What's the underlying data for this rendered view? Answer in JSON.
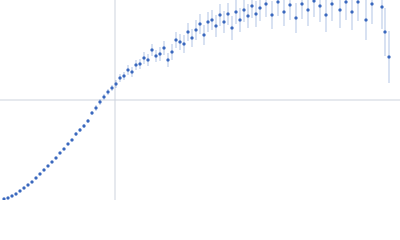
{
  "chart_data": {
    "type": "scatter",
    "x": [
      4,
      8,
      12,
      16,
      20,
      24,
      28,
      32,
      36,
      40,
      44,
      48,
      52,
      56,
      60,
      64,
      68,
      72,
      76,
      80,
      84,
      88,
      92,
      96,
      100,
      104,
      108,
      112,
      116,
      120,
      124,
      128,
      132,
      136,
      140,
      144,
      148,
      152,
      156,
      160,
      164,
      168,
      172,
      176,
      180,
      184,
      188,
      192,
      196,
      200,
      204,
      208,
      212,
      216,
      220,
      224,
      228,
      232,
      236,
      240,
      244,
      248,
      252,
      256,
      260,
      266,
      272,
      278,
      284,
      290,
      296,
      302,
      308,
      314,
      320,
      326,
      332,
      340,
      346,
      352,
      358,
      366,
      372,
      382,
      385,
      389
    ],
    "values": [
      1,
      2,
      4,
      6,
      9,
      12,
      15,
      18,
      22,
      26,
      30,
      34,
      38,
      42,
      47,
      51,
      56,
      60,
      66,
      70,
      74,
      79,
      87,
      92,
      98,
      103,
      108,
      112,
      116,
      122,
      124,
      130,
      128,
      135,
      136,
      142,
      140,
      150,
      144,
      146,
      152,
      140,
      148,
      160,
      158,
      156,
      168,
      162,
      170,
      176,
      165,
      178,
      180,
      174,
      185,
      178,
      186,
      172,
      188,
      180,
      190,
      184,
      194,
      186,
      192,
      196,
      185,
      198,
      188,
      195,
      182,
      196,
      190,
      199,
      194,
      185,
      196,
      190,
      198,
      188,
      198,
      180,
      196,
      193,
      168,
      143
    ],
    "errors": [
      0,
      0,
      0,
      0,
      0,
      0,
      0,
      0,
      0,
      0,
      1,
      1,
      1,
      1,
      1,
      1,
      1,
      1,
      2,
      2,
      2,
      2,
      2,
      3,
      3,
      3,
      3,
      3,
      4,
      4,
      4,
      5,
      5,
      5,
      5,
      6,
      6,
      6,
      6,
      7,
      7,
      7,
      8,
      8,
      8,
      9,
      9,
      9,
      10,
      10,
      10,
      10,
      10,
      11,
      11,
      11,
      11,
      12,
      12,
      12,
      12,
      12,
      12,
      13,
      13,
      13,
      14,
      14,
      14,
      15,
      15,
      15,
      16,
      16,
      16,
      17,
      17,
      18,
      18,
      18,
      19,
      20,
      20,
      22,
      24,
      26
    ],
    "color": "#3a68be",
    "error_color": "#9fb5de",
    "xlim": [
      0,
      400
    ],
    "ylim": [
      0,
      200
    ],
    "xticks": [
      115
    ],
    "yticks": [
      100
    ],
    "grid": true
  }
}
